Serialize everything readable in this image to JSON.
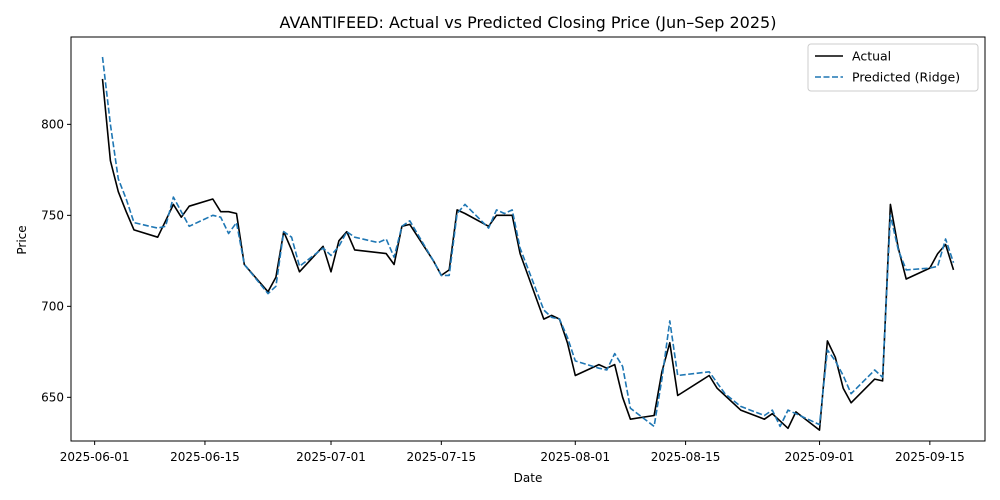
{
  "chart_data": {
    "type": "line",
    "title": "AVANTIFEED: Actual vs Predicted Closing Price (Jun–Sep 2025)",
    "xlabel": "Date",
    "ylabel": "Price",
    "xlim": [
      "2025-05-29",
      "2025-09-22"
    ],
    "ylim": [
      626,
      848
    ],
    "x_ticks": [
      "2025-06-01",
      "2025-06-15",
      "2025-07-01",
      "2025-07-15",
      "2025-08-01",
      "2025-08-15",
      "2025-09-01",
      "2025-09-15"
    ],
    "y_ticks": [
      650,
      700,
      750,
      800
    ],
    "grid": false,
    "legend_position": "top-right",
    "series": [
      {
        "name": "Actual",
        "color": "#000000",
        "style": "solid",
        "points": [
          [
            "2025-06-02",
            825
          ],
          [
            "2025-06-03",
            780
          ],
          [
            "2025-06-04",
            763
          ],
          [
            "2025-06-05",
            752
          ],
          [
            "2025-06-06",
            742
          ],
          [
            "2025-06-09",
            738
          ],
          [
            "2025-06-10",
            747
          ],
          [
            "2025-06-11",
            756
          ],
          [
            "2025-06-12",
            749
          ],
          [
            "2025-06-13",
            755
          ],
          [
            "2025-06-16",
            759
          ],
          [
            "2025-06-17",
            752
          ],
          [
            "2025-06-18",
            752
          ],
          [
            "2025-06-19",
            751
          ],
          [
            "2025-06-20",
            723
          ],
          [
            "2025-06-23",
            708
          ],
          [
            "2025-06-24",
            716
          ],
          [
            "2025-06-25",
            741
          ],
          [
            "2025-06-26",
            731
          ],
          [
            "2025-06-27",
            719
          ],
          [
            "2025-06-30",
            733
          ],
          [
            "2025-07-01",
            719
          ],
          [
            "2025-07-02",
            736
          ],
          [
            "2025-07-03",
            741
          ],
          [
            "2025-07-04",
            731
          ],
          [
            "2025-07-08",
            729
          ],
          [
            "2025-07-09",
            723
          ],
          [
            "2025-07-10",
            744
          ],
          [
            "2025-07-11",
            745
          ],
          [
            "2025-07-14",
            725
          ],
          [
            "2025-07-15",
            717
          ],
          [
            "2025-07-16",
            720
          ],
          [
            "2025-07-17",
            753
          ],
          [
            "2025-07-18",
            751
          ],
          [
            "2025-07-21",
            744
          ],
          [
            "2025-07-22",
            750
          ],
          [
            "2025-07-23",
            750
          ],
          [
            "2025-07-24",
            750
          ],
          [
            "2025-07-25",
            729
          ],
          [
            "2025-07-28",
            693
          ],
          [
            "2025-07-29",
            695
          ],
          [
            "2025-07-30",
            693
          ],
          [
            "2025-07-31",
            680
          ],
          [
            "2025-08-01",
            662
          ],
          [
            "2025-08-04",
            668
          ],
          [
            "2025-08-05",
            666
          ],
          [
            "2025-08-06",
            668
          ],
          [
            "2025-08-07",
            650
          ],
          [
            "2025-08-08",
            638
          ],
          [
            "2025-08-11",
            640
          ],
          [
            "2025-08-12",
            664
          ],
          [
            "2025-08-13",
            680
          ],
          [
            "2025-08-14",
            651
          ],
          [
            "2025-08-18",
            662
          ],
          [
            "2025-08-19",
            655
          ],
          [
            "2025-08-20",
            651
          ],
          [
            "2025-08-22",
            643
          ],
          [
            "2025-08-25",
            638
          ],
          [
            "2025-08-26",
            641
          ],
          [
            "2025-08-28",
            633
          ],
          [
            "2025-08-29",
            642
          ],
          [
            "2025-09-01",
            632
          ],
          [
            "2025-09-02",
            681
          ],
          [
            "2025-09-03",
            672
          ],
          [
            "2025-09-04",
            655
          ],
          [
            "2025-09-05",
            647
          ],
          [
            "2025-09-08",
            660
          ],
          [
            "2025-09-09",
            659
          ],
          [
            "2025-09-10",
            756
          ],
          [
            "2025-09-11",
            732
          ],
          [
            "2025-09-12",
            715
          ],
          [
            "2025-09-15",
            721
          ],
          [
            "2025-09-16",
            729
          ],
          [
            "2025-09-17",
            734
          ],
          [
            "2025-09-18",
            720
          ]
        ]
      },
      {
        "name": "Predicted (Ridge)",
        "color": "#1f77b4",
        "style": "dashed",
        "points": [
          [
            "2025-06-02",
            837
          ],
          [
            "2025-06-03",
            800
          ],
          [
            "2025-06-04",
            770
          ],
          [
            "2025-06-05",
            759
          ],
          [
            "2025-06-06",
            746
          ],
          [
            "2025-06-08",
            744
          ],
          [
            "2025-06-09",
            743
          ],
          [
            "2025-06-10",
            744
          ],
          [
            "2025-06-11",
            760
          ],
          [
            "2025-06-12",
            752
          ],
          [
            "2025-06-13",
            744
          ],
          [
            "2025-06-16",
            750
          ],
          [
            "2025-06-17",
            749
          ],
          [
            "2025-06-18",
            740
          ],
          [
            "2025-06-19",
            746
          ],
          [
            "2025-06-20",
            723
          ],
          [
            "2025-06-23",
            707
          ],
          [
            "2025-06-24",
            711
          ],
          [
            "2025-06-25",
            741
          ],
          [
            "2025-06-26",
            738
          ],
          [
            "2025-06-27",
            722
          ],
          [
            "2025-06-30",
            732
          ],
          [
            "2025-07-01",
            728
          ],
          [
            "2025-07-02",
            733
          ],
          [
            "2025-07-03",
            741
          ],
          [
            "2025-07-04",
            738
          ],
          [
            "2025-07-07",
            735
          ],
          [
            "2025-07-08",
            737
          ],
          [
            "2025-07-09",
            727
          ],
          [
            "2025-07-10",
            744
          ],
          [
            "2025-07-11",
            747
          ],
          [
            "2025-07-14",
            725
          ],
          [
            "2025-07-15",
            717
          ],
          [
            "2025-07-16",
            717
          ],
          [
            "2025-07-17",
            751
          ],
          [
            "2025-07-18",
            756
          ],
          [
            "2025-07-21",
            743
          ],
          [
            "2025-07-22",
            753
          ],
          [
            "2025-07-23",
            751
          ],
          [
            "2025-07-24",
            753
          ],
          [
            "2025-07-25",
            732
          ],
          [
            "2025-07-28",
            698
          ],
          [
            "2025-07-29",
            694
          ],
          [
            "2025-07-30",
            693
          ],
          [
            "2025-07-31",
            683
          ],
          [
            "2025-08-01",
            670
          ],
          [
            "2025-08-04",
            666
          ],
          [
            "2025-08-05",
            665
          ],
          [
            "2025-08-06",
            674
          ],
          [
            "2025-08-07",
            667
          ],
          [
            "2025-08-08",
            644
          ],
          [
            "2025-08-11",
            634
          ],
          [
            "2025-08-12",
            660
          ],
          [
            "2025-08-13",
            692
          ],
          [
            "2025-08-14",
            662
          ],
          [
            "2025-08-18",
            664
          ],
          [
            "2025-08-19",
            658
          ],
          [
            "2025-08-20",
            652
          ],
          [
            "2025-08-22",
            645
          ],
          [
            "2025-08-25",
            640
          ],
          [
            "2025-08-26",
            643
          ],
          [
            "2025-08-27",
            634
          ],
          [
            "2025-08-28",
            643
          ],
          [
            "2025-08-29",
            641
          ],
          [
            "2025-09-01",
            635
          ],
          [
            "2025-09-02",
            676
          ],
          [
            "2025-09-03",
            670
          ],
          [
            "2025-09-04",
            662
          ],
          [
            "2025-09-05",
            652
          ],
          [
            "2025-09-08",
            665
          ],
          [
            "2025-09-09",
            661
          ],
          [
            "2025-09-10",
            750
          ],
          [
            "2025-09-11",
            731
          ],
          [
            "2025-09-12",
            720
          ],
          [
            "2025-09-15",
            721
          ],
          [
            "2025-09-16",
            722
          ],
          [
            "2025-09-17",
            737
          ],
          [
            "2025-09-18",
            724
          ]
        ]
      }
    ]
  }
}
